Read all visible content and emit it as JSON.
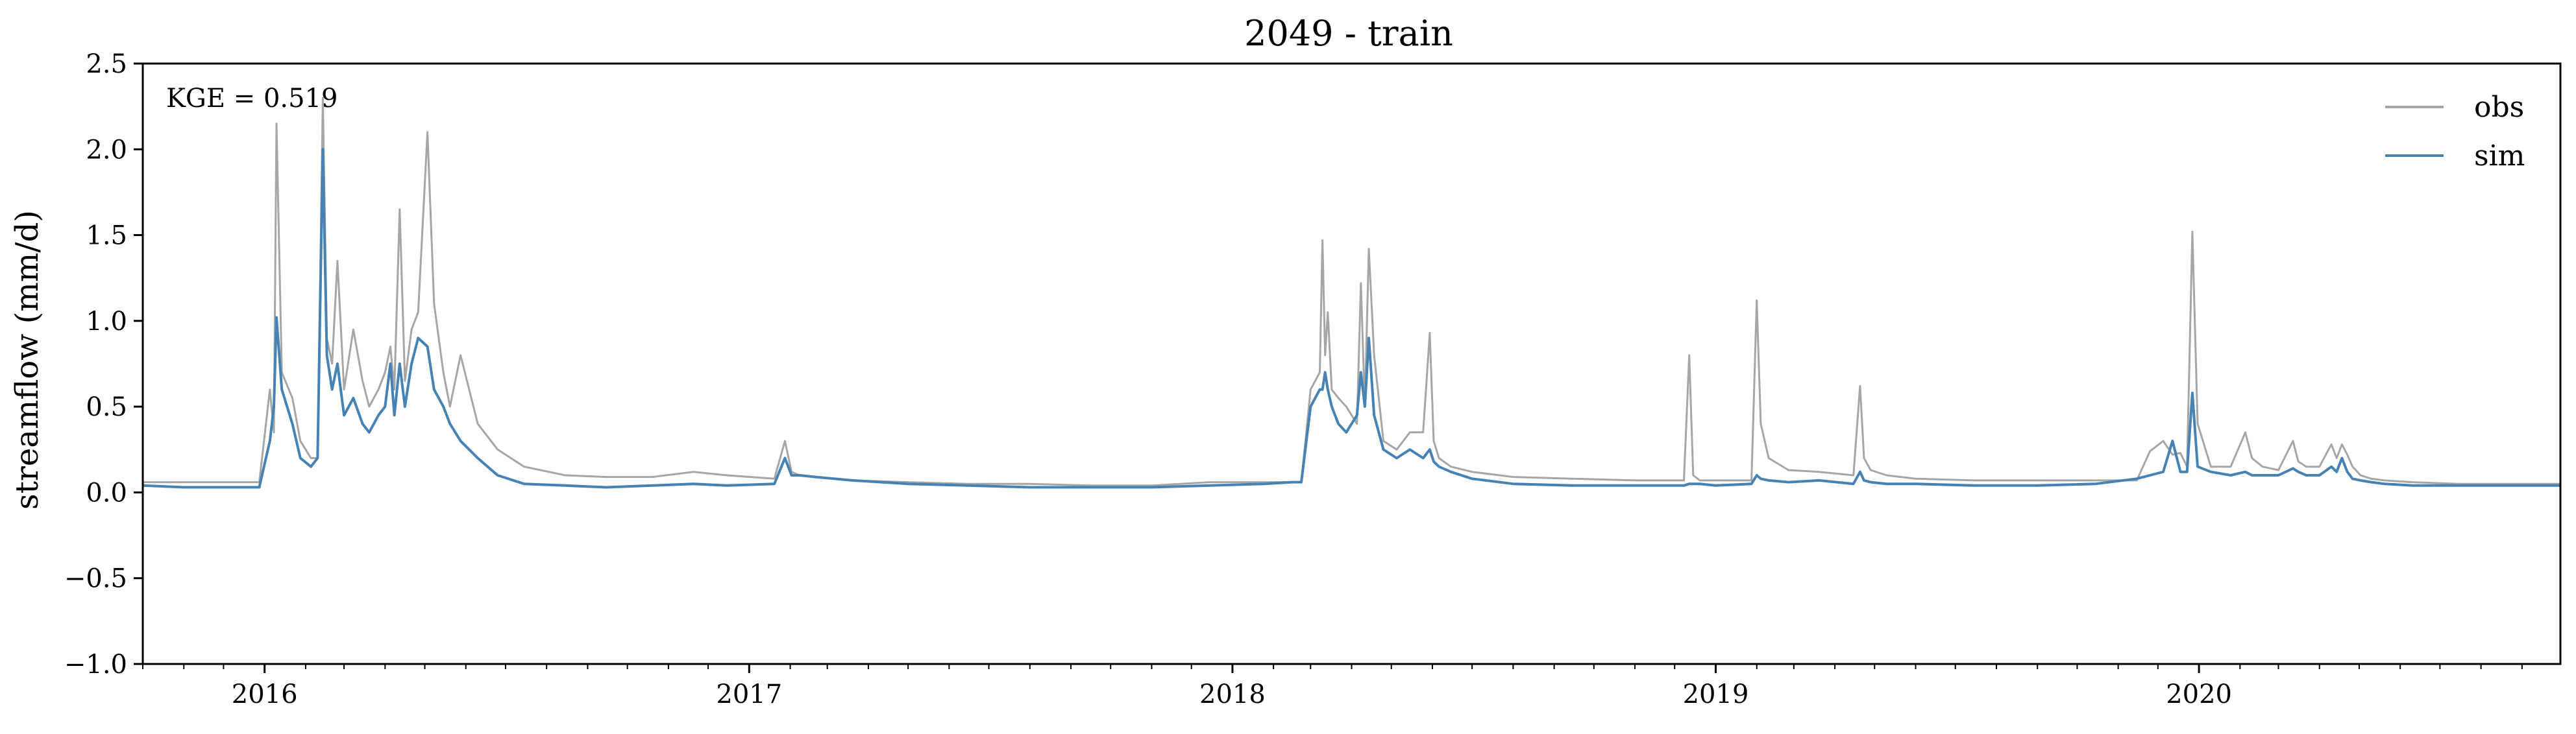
{
  "chart_data": {
    "type": "line",
    "title": "2049 - train",
    "xlabel": "",
    "ylabel": "streamflow (mm/d)",
    "xlim": [
      "2015-10-01",
      "2020-09-30"
    ],
    "ylim": [
      -1.0,
      2.5
    ],
    "yticks": [
      -1.0,
      -0.5,
      0.0,
      0.5,
      1.0,
      1.5,
      2.0,
      2.5
    ],
    "ytick_labels": [
      "−1.0",
      "−0.5",
      "0.0",
      "0.5",
      "1.0",
      "1.5",
      "2.0",
      "2.5"
    ],
    "xticks": [
      "2016-01-01",
      "2017-01-01",
      "2018-01-01",
      "2019-01-01",
      "2020-01-01"
    ],
    "xtick_labels": [
      "2016",
      "2017",
      "2018",
      "2019",
      "2020"
    ],
    "grid": false,
    "legend_position": "top-right",
    "annotation": "KGE = 0.519",
    "series": [
      {
        "name": "obs",
        "color": "#a6a6a6",
        "x": [
          "2015-10-01",
          "2015-12-28",
          "2016-01-05",
          "2016-01-08",
          "2016-01-10",
          "2016-01-14",
          "2016-01-22",
          "2016-01-28",
          "2016-02-05",
          "2016-02-10",
          "2016-02-14",
          "2016-02-17",
          "2016-02-21",
          "2016-02-25",
          "2016-03-01",
          "2016-03-08",
          "2016-03-15",
          "2016-03-20",
          "2016-03-27",
          "2016-04-01",
          "2016-04-05",
          "2016-04-08",
          "2016-04-12",
          "2016-04-16",
          "2016-04-21",
          "2016-04-26",
          "2016-05-03",
          "2016-05-08",
          "2016-05-15",
          "2016-05-20",
          "2016-05-28",
          "2016-06-10",
          "2016-06-25",
          "2016-07-15",
          "2016-08-15",
          "2016-09-15",
          "2016-10-20",
          "2016-11-20",
          "2016-12-15",
          "2017-01-20",
          "2017-01-28",
          "2017-02-02",
          "2017-02-08",
          "2017-02-20",
          "2017-03-20",
          "2017-05-01",
          "2017-06-15",
          "2017-08-01",
          "2017-09-15",
          "2017-11-01",
          "2017-12-15",
          "2018-01-25",
          "2018-02-15",
          "2018-02-22",
          "2018-03-01",
          "2018-03-08",
          "2018-03-10",
          "2018-03-12",
          "2018-03-14",
          "2018-03-17",
          "2018-03-22",
          "2018-03-28",
          "2018-04-05",
          "2018-04-08",
          "2018-04-11",
          "2018-04-14",
          "2018-04-18",
          "2018-04-25",
          "2018-05-05",
          "2018-05-15",
          "2018-05-25",
          "2018-05-30",
          "2018-06-02",
          "2018-06-06",
          "2018-06-15",
          "2018-07-01",
          "2018-08-01",
          "2018-09-15",
          "2018-11-01",
          "2018-12-08",
          "2018-12-12",
          "2018-12-15",
          "2018-12-20",
          "2019-01-01",
          "2019-01-28",
          "2019-02-01",
          "2019-02-04",
          "2019-02-10",
          "2019-02-25",
          "2019-03-20",
          "2019-04-15",
          "2019-04-20",
          "2019-04-23",
          "2019-04-28",
          "2019-05-10",
          "2019-06-01",
          "2019-07-15",
          "2019-09-01",
          "2019-10-15",
          "2019-11-15",
          "2019-11-25",
          "2019-12-05",
          "2019-12-12",
          "2019-12-18",
          "2019-12-23",
          "2019-12-27",
          "2019-12-31",
          "2020-01-10",
          "2020-01-25",
          "2020-02-05",
          "2020-02-10",
          "2020-02-18",
          "2020-03-01",
          "2020-03-12",
          "2020-03-16",
          "2020-03-22",
          "2020-04-01",
          "2020-04-10",
          "2020-04-14",
          "2020-04-18",
          "2020-04-22",
          "2020-04-26",
          "2020-05-02",
          "2020-05-10",
          "2020-05-20",
          "2020-06-10",
          "2020-07-15",
          "2020-08-15",
          "2020-09-30"
        ],
        "y": [
          0.06,
          0.06,
          0.6,
          0.35,
          2.15,
          0.7,
          0.55,
          0.3,
          0.2,
          0.2,
          2.3,
          0.9,
          0.75,
          1.35,
          0.6,
          0.95,
          0.65,
          0.5,
          0.6,
          0.7,
          0.85,
          0.6,
          1.65,
          0.65,
          0.95,
          1.05,
          2.1,
          1.1,
          0.7,
          0.5,
          0.8,
          0.4,
          0.25,
          0.15,
          0.1,
          0.09,
          0.09,
          0.12,
          0.1,
          0.08,
          0.3,
          0.12,
          0.1,
          0.09,
          0.07,
          0.06,
          0.05,
          0.05,
          0.04,
          0.04,
          0.06,
          0.06,
          0.06,
          0.06,
          0.6,
          0.7,
          1.47,
          0.8,
          1.05,
          0.6,
          0.55,
          0.5,
          0.4,
          1.22,
          0.5,
          1.42,
          0.8,
          0.3,
          0.25,
          0.35,
          0.35,
          0.93,
          0.3,
          0.2,
          0.15,
          0.12,
          0.09,
          0.08,
          0.07,
          0.07,
          0.8,
          0.1,
          0.07,
          0.07,
          0.07,
          1.12,
          0.4,
          0.2,
          0.13,
          0.12,
          0.1,
          0.62,
          0.2,
          0.13,
          0.1,
          0.08,
          0.07,
          0.07,
          0.07,
          0.07,
          0.24,
          0.3,
          0.22,
          0.23,
          0.15,
          1.52,
          0.4,
          0.15,
          0.15,
          0.35,
          0.2,
          0.15,
          0.13,
          0.3,
          0.18,
          0.15,
          0.15,
          0.28,
          0.2,
          0.28,
          0.22,
          0.15,
          0.1,
          0.08,
          0.07,
          0.06,
          0.05,
          0.05,
          0.05
        ]
      },
      {
        "name": "sim",
        "color": "#4682b4",
        "x": [
          "2015-10-01",
          "2015-11-01",
          "2015-12-01",
          "2015-12-28",
          "2016-01-05",
          "2016-01-08",
          "2016-01-10",
          "2016-01-14",
          "2016-01-22",
          "2016-01-28",
          "2016-02-05",
          "2016-02-10",
          "2016-02-14",
          "2016-02-17",
          "2016-02-21",
          "2016-02-25",
          "2016-03-01",
          "2016-03-08",
          "2016-03-15",
          "2016-03-20",
          "2016-03-27",
          "2016-04-01",
          "2016-04-05",
          "2016-04-08",
          "2016-04-12",
          "2016-04-16",
          "2016-04-21",
          "2016-04-26",
          "2016-05-03",
          "2016-05-08",
          "2016-05-15",
          "2016-05-20",
          "2016-05-28",
          "2016-06-10",
          "2016-06-25",
          "2016-07-15",
          "2016-08-15",
          "2016-09-15",
          "2016-10-20",
          "2016-11-20",
          "2016-12-15",
          "2017-01-20",
          "2017-01-28",
          "2017-02-02",
          "2017-02-08",
          "2017-02-20",
          "2017-03-20",
          "2017-05-01",
          "2017-06-15",
          "2017-08-01",
          "2017-09-15",
          "2017-11-01",
          "2017-12-15",
          "2018-01-25",
          "2018-02-15",
          "2018-02-22",
          "2018-03-01",
          "2018-03-08",
          "2018-03-10",
          "2018-03-12",
          "2018-03-14",
          "2018-03-17",
          "2018-03-22",
          "2018-03-28",
          "2018-04-05",
          "2018-04-08",
          "2018-04-11",
          "2018-04-14",
          "2018-04-18",
          "2018-04-25",
          "2018-05-05",
          "2018-05-15",
          "2018-05-25",
          "2018-05-30",
          "2018-06-02",
          "2018-06-06",
          "2018-06-15",
          "2018-07-01",
          "2018-08-01",
          "2018-09-15",
          "2018-11-01",
          "2018-12-08",
          "2018-12-12",
          "2018-12-15",
          "2018-12-20",
          "2019-01-01",
          "2019-01-28",
          "2019-02-01",
          "2019-02-04",
          "2019-02-10",
          "2019-02-25",
          "2019-03-20",
          "2019-04-15",
          "2019-04-20",
          "2019-04-23",
          "2019-04-28",
          "2019-05-10",
          "2019-06-01",
          "2019-07-15",
          "2019-09-01",
          "2019-10-15",
          "2019-11-15",
          "2019-11-25",
          "2019-12-05",
          "2019-12-12",
          "2019-12-18",
          "2019-12-23",
          "2019-12-27",
          "2019-12-31",
          "2020-01-10",
          "2020-01-25",
          "2020-02-05",
          "2020-02-10",
          "2020-02-18",
          "2020-03-01",
          "2020-03-12",
          "2020-03-16",
          "2020-03-22",
          "2020-04-01",
          "2020-04-10",
          "2020-04-14",
          "2020-04-18",
          "2020-04-22",
          "2020-04-26",
          "2020-05-02",
          "2020-05-10",
          "2020-05-20",
          "2020-06-10",
          "2020-07-15",
          "2020-08-15",
          "2020-09-30"
        ],
        "y": [
          0.04,
          0.03,
          0.03,
          0.03,
          0.3,
          0.5,
          1.02,
          0.6,
          0.4,
          0.2,
          0.15,
          0.2,
          2.0,
          0.8,
          0.6,
          0.75,
          0.45,
          0.55,
          0.4,
          0.35,
          0.45,
          0.5,
          0.75,
          0.45,
          0.75,
          0.5,
          0.75,
          0.9,
          0.85,
          0.6,
          0.5,
          0.4,
          0.3,
          0.2,
          0.1,
          0.05,
          0.04,
          0.03,
          0.04,
          0.05,
          0.04,
          0.05,
          0.2,
          0.1,
          0.1,
          0.09,
          0.07,
          0.05,
          0.04,
          0.03,
          0.03,
          0.03,
          0.04,
          0.05,
          0.06,
          0.06,
          0.5,
          0.6,
          0.6,
          0.7,
          0.6,
          0.5,
          0.4,
          0.35,
          0.45,
          0.7,
          0.5,
          0.9,
          0.45,
          0.25,
          0.2,
          0.25,
          0.2,
          0.25,
          0.18,
          0.15,
          0.12,
          0.08,
          0.05,
          0.04,
          0.04,
          0.04,
          0.05,
          0.05,
          0.05,
          0.04,
          0.05,
          0.1,
          0.08,
          0.07,
          0.06,
          0.07,
          0.05,
          0.12,
          0.07,
          0.06,
          0.05,
          0.05,
          0.04,
          0.04,
          0.05,
          0.08,
          0.1,
          0.12,
          0.3,
          0.12,
          0.12,
          0.58,
          0.15,
          0.12,
          0.1,
          0.12,
          0.1,
          0.1,
          0.1,
          0.14,
          0.12,
          0.1,
          0.1,
          0.15,
          0.12,
          0.2,
          0.12,
          0.08,
          0.07,
          0.06,
          0.05,
          0.04,
          0.04,
          0.04,
          0.04
        ]
      }
    ]
  }
}
